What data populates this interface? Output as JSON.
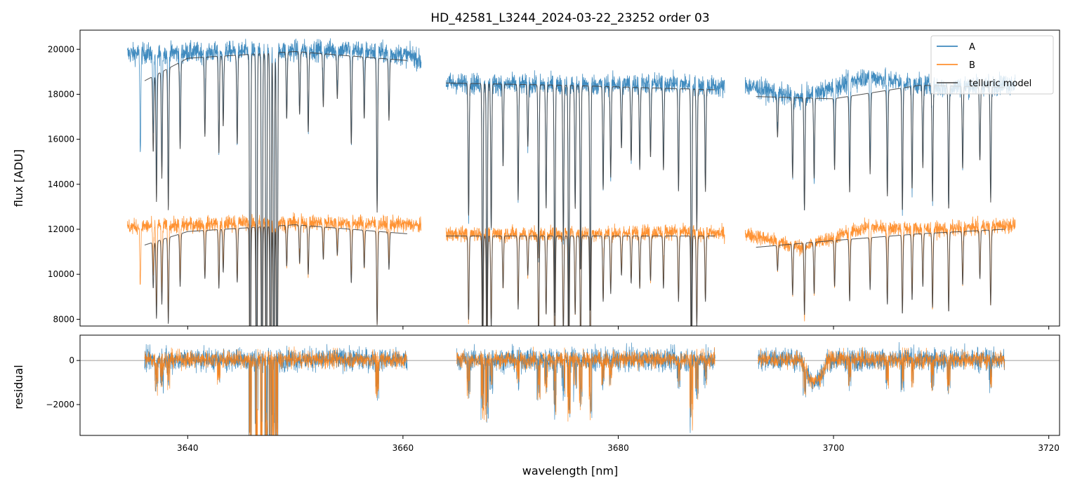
{
  "chart_data": [
    {
      "type": "line",
      "panel": "top",
      "title": "HD_42581_L3244_2024-03-22_23252  order 03",
      "xlabel": "",
      "ylabel": "flux [ADU]",
      "xlim": [
        3630,
        3721
      ],
      "ylim": [
        7700,
        20850
      ],
      "yticks": [
        8000,
        10000,
        12000,
        14000,
        16000,
        18000,
        20000
      ],
      "xticks": [
        3640,
        3660,
        3680,
        3700,
        3720
      ],
      "xtick_labels_visible": false,
      "grid": false,
      "legend": "top-right",
      "series": [
        {
          "name": "A",
          "color": "#1f77b4",
          "segments": [
            [
              3634.4,
              3661.7
            ],
            [
              3664.0,
              3689.9
            ],
            [
              3691.8,
              3716.9
            ]
          ],
          "levels": [
            [
              3634.4,
              19800
            ],
            [
              3645.0,
              19900
            ],
            [
              3655.0,
              20000
            ],
            [
              3661.0,
              19700
            ],
            [
              3664.0,
              18500
            ],
            [
              3675.0,
              18400
            ],
            [
              3685.0,
              18500
            ],
            [
              3689.9,
              18300
            ],
            [
              3691.8,
              18400
            ],
            [
              3697.0,
              17800
            ],
            [
              3703.0,
              18800
            ],
            [
              3710.0,
              18300
            ],
            [
              3716.9,
              18500
            ]
          ]
        },
        {
          "name": "B",
          "color": "#ff7f0e",
          "segments": [
            [
              3634.4,
              3661.7
            ],
            [
              3664.0,
              3689.9
            ],
            [
              3691.8,
              3716.9
            ]
          ],
          "levels": [
            [
              3634.4,
              12100
            ],
            [
              3645.0,
              12300
            ],
            [
              3655.0,
              12300
            ],
            [
              3661.0,
              12200
            ],
            [
              3664.0,
              11800
            ],
            [
              3675.0,
              11800
            ],
            [
              3685.0,
              11900
            ],
            [
              3689.9,
              11800
            ],
            [
              3691.8,
              11800
            ],
            [
              3697.0,
              11200
            ],
            [
              3703.0,
              12100
            ],
            [
              3710.0,
              12000
            ],
            [
              3716.9,
              12200
            ]
          ]
        },
        {
          "name": "telluric model",
          "color": "#404040",
          "segments": [
            [
              3636.0,
              3660.4
            ],
            [
              3664.0,
              3689.0
            ],
            [
              3692.8,
              3715.9
            ]
          ],
          "model_levels_A": [
            [
              3636.0,
              18600
            ],
            [
              3640.0,
              19600
            ],
            [
              3650.0,
              19900
            ],
            [
              3660.4,
              19500
            ],
            [
              3664.0,
              18500
            ],
            [
              3675.0,
              18400
            ],
            [
              3689.0,
              18200
            ],
            [
              3692.8,
              17900
            ],
            [
              3700.0,
              17800
            ],
            [
              3708.0,
              18400
            ],
            [
              3715.9,
              18300
            ]
          ],
          "model_levels_B": [
            [
              3636.0,
              11300
            ],
            [
              3640.0,
              11900
            ],
            [
              3650.0,
              12200
            ],
            [
              3660.4,
              11800
            ],
            [
              3664.0,
              11700
            ],
            [
              3675.0,
              11700
            ],
            [
              3689.0,
              11700
            ],
            [
              3692.8,
              11200
            ],
            [
              3700.0,
              11500
            ],
            [
              3708.0,
              11800
            ],
            [
              3715.9,
              12000
            ]
          ]
        }
      ]
    },
    {
      "type": "line",
      "panel": "bottom",
      "xlabel": "wavelength [nm]",
      "ylabel": "residual",
      "xlim": [
        3630,
        3721
      ],
      "ylim": [
        -3400,
        1150
      ],
      "yticks": [
        -2000,
        0
      ],
      "xticks": [
        3640,
        3660,
        3680,
        3700,
        3720
      ],
      "zero_line": 0,
      "grid": false,
      "series": [
        {
          "name": "A",
          "color": "#1f77b4",
          "segments": [
            [
              3636.0,
              3660.4
            ],
            [
              3665.0,
              3689.0
            ],
            [
              3693.0,
              3715.9
            ]
          ]
        },
        {
          "name": "B",
          "color": "#ff7f0e",
          "segments": [
            [
              3636.0,
              3660.4
            ],
            [
              3665.0,
              3689.0
            ],
            [
              3693.0,
              3715.9
            ]
          ]
        }
      ]
    }
  ],
  "telluric_lines": [
    3635.6,
    3636.8,
    3637.1,
    3637.6,
    3638.2,
    3639.3,
    3641.6,
    3642.9,
    3643.3,
    3644.6,
    3645.8,
    3646.4,
    3646.9,
    3647.3,
    3647.7,
    3648.0,
    3648.3,
    3649.2,
    3650.4,
    3651.2,
    3652.6,
    3653.9,
    3655.2,
    3656.4,
    3657.6,
    3658.7,
    3666.1,
    3667.4,
    3667.8,
    3668.2,
    3669.3,
    3670.7,
    3671.6,
    3672.6,
    3673.3,
    3674.1,
    3674.9,
    3675.4,
    3676.0,
    3676.5,
    3677.4,
    3678.6,
    3679.3,
    3680.3,
    3681.2,
    3682.0,
    3683.0,
    3684.2,
    3685.6,
    3686.8,
    3687.3,
    3688.1,
    3694.8,
    3696.2,
    3697.3,
    3698.2,
    3700.1,
    3701.5,
    3703.4,
    3705.0,
    3706.4,
    3707.3,
    3708.3,
    3709.2,
    3710.7,
    3712.0,
    3713.6,
    3714.6
  ],
  "line_depths": [
    0.22,
    0.18,
    0.3,
    0.25,
    0.33,
    0.2,
    0.18,
    0.22,
    0.16,
    0.2,
    0.95,
    0.95,
    0.95,
    0.95,
    0.95,
    0.95,
    0.95,
    0.15,
    0.14,
    0.18,
    0.12,
    0.1,
    0.2,
    0.14,
    0.35,
    0.14,
    0.32,
    0.6,
    0.6,
    0.35,
    0.2,
    0.28,
    0.15,
    0.42,
    0.3,
    0.55,
    0.38,
    0.6,
    0.3,
    0.45,
    0.55,
    0.25,
    0.22,
    0.15,
    0.18,
    0.2,
    0.17,
    0.2,
    0.25,
    0.7,
    0.35,
    0.25,
    0.1,
    0.2,
    0.28,
    0.2,
    0.18,
    0.24,
    0.2,
    0.26,
    0.3,
    0.25,
    0.2,
    0.28,
    0.3,
    0.2,
    0.18,
    0.28
  ]
}
